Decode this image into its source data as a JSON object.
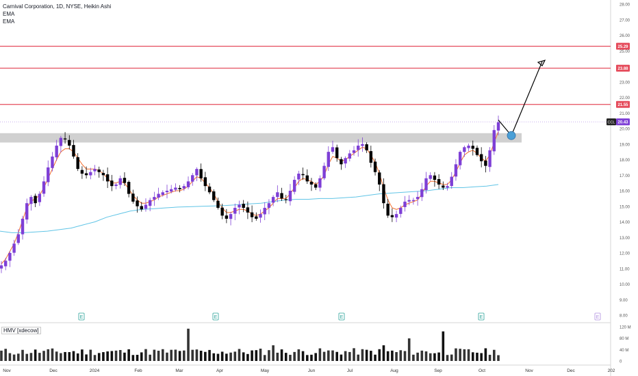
{
  "legend": {
    "symbol_line": "Carnival Corporation, 1D, NYSE, Heikin Ashi",
    "indicator_1": "EMA",
    "indicator_2": "EMA",
    "volume_label": "HMV [xdecow]"
  },
  "colors": {
    "bull": "#7e3fd6",
    "bear": "#000000",
    "ema_fast": "#f26b2a",
    "ema_slow": "#5fc4e6",
    "resistance": "#e54b5b",
    "zone": "#c8c8c8",
    "marker": "#4a9fd6"
  },
  "chart_data": [
    {
      "type": "candlestick",
      "title": "Carnival Corporation, 1D, NYSE, Heikin Ashi",
      "ylim": [
        8,
        28
      ],
      "y_ticks": [
        "28.00",
        "27.00",
        "26.00",
        "25.00",
        "24.00",
        "23.00",
        "22.00",
        "21.00",
        "20.00",
        "19.00",
        "18.00",
        "17.00",
        "16.00",
        "15.00",
        "14.00",
        "13.00",
        "12.00",
        "11.00",
        "10.00",
        "9.00",
        "8.00"
      ],
      "x_ticks": [
        "Nov",
        "Dec",
        "2024",
        "Feb",
        "Mar",
        "Apr",
        "May",
        "Jun",
        "Jul",
        "Aug",
        "Sep",
        "Oct",
        "Nov",
        "Dec",
        "202"
      ],
      "price_path": [
        11.2,
        11.5,
        12.0,
        12.6,
        13.2,
        14.2,
        15.2,
        15.6,
        15.2,
        15.8,
        16.6,
        17.5,
        18.2,
        18.9,
        19.4,
        19.3,
        18.9,
        18.2,
        17.4,
        17.1,
        17.0,
        17.2,
        17.4,
        17.2,
        17.0,
        16.6,
        16.3,
        16.4,
        16.8,
        16.5,
        15.8,
        15.3,
        15.0,
        14.8,
        15.1,
        15.4,
        15.6,
        15.8,
        15.9,
        16.0,
        16.1,
        16.2,
        16.1,
        16.3,
        16.6,
        17.0,
        17.4,
        16.8,
        16.3,
        15.9,
        15.4,
        14.9,
        14.4,
        14.2,
        14.5,
        14.9,
        15.1,
        14.9,
        14.6,
        14.3,
        14.2,
        14.5,
        14.9,
        15.2,
        15.6,
        15.9,
        15.5,
        15.4,
        16.0,
        16.7,
        17.1,
        17.0,
        16.6,
        16.4,
        16.2,
        16.8,
        17.6,
        18.5,
        18.8,
        18.1,
        17.7,
        18.1,
        18.4,
        18.6,
        18.9,
        19.0,
        18.6,
        17.8,
        17.2,
        16.4,
        15.2,
        14.4,
        14.3,
        14.5,
        14.9,
        15.3,
        15.4,
        15.4,
        15.6,
        16.1,
        16.8,
        17.0,
        16.7,
        16.4,
        16.2,
        16.3,
        16.9,
        17.7,
        18.5,
        18.8,
        18.9,
        18.7,
        18.3,
        17.9,
        17.6,
        18.6,
        19.9,
        20.4
      ],
      "candle_colors": "purple = up, black = down",
      "ema_fast_path": [
        11.3,
        11.6,
        12.1,
        12.6,
        13.3,
        14.1,
        14.9,
        15.3,
        15.5,
        15.7,
        16.2,
        16.8,
        17.4,
        18.0,
        18.5,
        18.7,
        18.7,
        18.5,
        18.1,
        17.7,
        17.4,
        17.4,
        17.4,
        17.3,
        17.1,
        16.8,
        16.5,
        16.5,
        16.6,
        16.5,
        16.1,
        15.7,
        15.4,
        15.2,
        15.2,
        15.3,
        15.4,
        15.6,
        15.7,
        15.8,
        15.9,
        16.0,
        16.0,
        16.1,
        16.3,
        16.6,
        16.9,
        16.8,
        16.5,
        16.2,
        15.8,
        15.3,
        14.9,
        14.6,
        14.6,
        14.7,
        14.8,
        14.8,
        14.7,
        14.5,
        14.4,
        14.5,
        14.7,
        14.9,
        15.2,
        15.5,
        15.5,
        15.5,
        15.8,
        16.2,
        16.6,
        16.8,
        16.7,
        16.6,
        16.4,
        16.6,
        17.0,
        17.7,
        18.2,
        18.1,
        17.9,
        18.0,
        18.2,
        18.4,
        18.6,
        18.8,
        18.7,
        18.3,
        17.8,
        17.1,
        16.2,
        15.4,
        14.9,
        14.8,
        14.9,
        15.1,
        15.2,
        15.3,
        15.4,
        15.8,
        16.3,
        16.6,
        16.6,
        16.5,
        16.4,
        16.4,
        16.7,
        17.2,
        17.8,
        18.3,
        18.5,
        18.6,
        18.4,
        18.1,
        17.9,
        18.3,
        19.1,
        19.8
      ],
      "ema_slow_path": [
        13.4,
        13.3,
        13.3,
        13.35,
        13.4,
        13.5,
        13.6,
        13.8,
        14.0,
        14.3,
        14.5,
        14.7,
        14.8,
        14.85,
        14.9,
        14.95,
        14.97,
        15.0,
        15.02,
        15.05,
        15.1,
        15.15,
        15.2,
        15.3,
        15.4,
        15.45,
        15.45,
        15.5,
        15.5,
        15.55,
        15.6,
        15.7,
        15.8,
        15.85,
        15.9,
        15.95,
        16.0,
        16.1,
        16.2,
        16.2,
        16.25,
        16.3,
        16.4
      ],
      "resistance_levels": [
        25.29,
        23.88,
        21.55
      ],
      "current_price_label": "20.43",
      "current_price_tag": "CCL",
      "support_zone": [
        19.1,
        19.7
      ],
      "earnings_marker": "E",
      "volume_axis": [
        "120 M",
        "80 M",
        "40 M",
        "0"
      ]
    }
  ]
}
